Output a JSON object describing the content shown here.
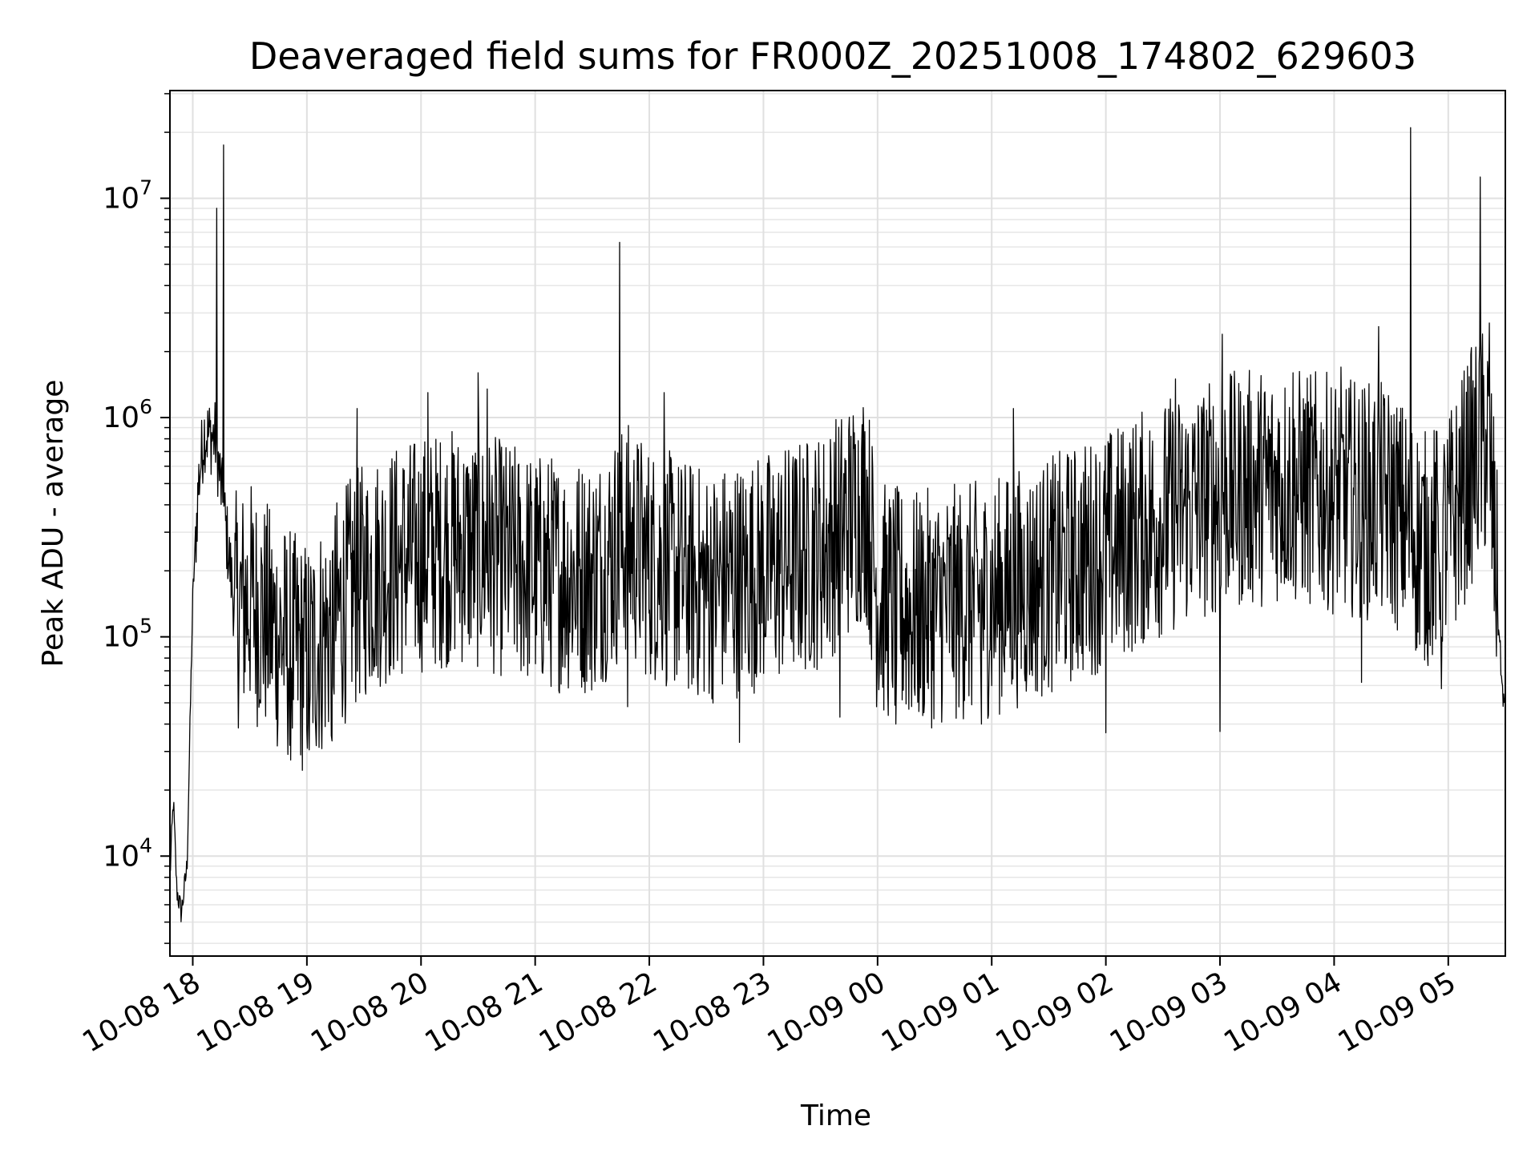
{
  "chart_data": {
    "type": "line",
    "title": "Deaveraged field sums for FR000Z_20251008_174802_629603",
    "xlabel": "Time",
    "ylabel": "Peak ADU - average",
    "yscale": "log",
    "x_unit": "hours since 10-08 00:00",
    "xlim": [
      17.8,
      29.5
    ],
    "ylim": [
      3500,
      31000000
    ],
    "x_ticks": [
      {
        "value": 18,
        "label": "10-08 18"
      },
      {
        "value": 19,
        "label": "10-08 19"
      },
      {
        "value": 20,
        "label": "10-08 20"
      },
      {
        "value": 21,
        "label": "10-08 21"
      },
      {
        "value": 22,
        "label": "10-08 22"
      },
      {
        "value": 23,
        "label": "10-08 23"
      },
      {
        "value": 24,
        "label": "10-09 00"
      },
      {
        "value": 25,
        "label": "10-09 01"
      },
      {
        "value": 26,
        "label": "10-09 02"
      },
      {
        "value": 27,
        "label": "10-09 03"
      },
      {
        "value": 28,
        "label": "10-09 04"
      },
      {
        "value": 29,
        "label": "10-09 05"
      }
    ],
    "y_ticks": [
      {
        "value": 10000,
        "base": "10",
        "exp": "4"
      },
      {
        "value": 100000,
        "base": "10",
        "exp": "5"
      },
      {
        "value": 1000000,
        "base": "10",
        "exp": "6"
      },
      {
        "value": 10000000,
        "base": "10",
        "exp": "7"
      }
    ],
    "grid": true,
    "series": [
      {
        "name": "field sums",
        "color": "#000000",
        "trend": [
          [
            17.8,
            8000
          ],
          [
            17.83,
            18000
          ],
          [
            17.86,
            7000
          ],
          [
            17.9,
            5500
          ],
          [
            17.95,
            9000
          ],
          [
            18.0,
            150000
          ],
          [
            18.05,
            500000
          ],
          [
            18.1,
            850000
          ],
          [
            18.2,
            800000
          ],
          [
            18.3,
            280000
          ],
          [
            18.37,
            130000
          ],
          [
            18.5,
            150000
          ],
          [
            18.7,
            110000
          ],
          [
            18.9,
            85000
          ],
          [
            19.0,
            80000
          ],
          [
            19.2,
            110000
          ],
          [
            19.4,
            160000
          ],
          [
            19.6,
            200000
          ],
          [
            19.8,
            220000
          ],
          [
            20.0,
            240000
          ],
          [
            20.3,
            260000
          ],
          [
            20.6,
            240000
          ],
          [
            21.0,
            200000
          ],
          [
            21.5,
            190000
          ],
          [
            21.8,
            280000
          ],
          [
            22.0,
            220000
          ],
          [
            22.5,
            170000
          ],
          [
            23.0,
            200000
          ],
          [
            23.5,
            250000
          ],
          [
            23.9,
            420000
          ],
          [
            24.0,
            150000
          ],
          [
            24.3,
            130000
          ],
          [
            24.6,
            140000
          ],
          [
            25.0,
            150000
          ],
          [
            25.5,
            190000
          ],
          [
            26.0,
            250000
          ],
          [
            26.5,
            350000
          ],
          [
            27.0,
            450000
          ],
          [
            27.5,
            500000
          ],
          [
            28.0,
            450000
          ],
          [
            28.5,
            400000
          ],
          [
            28.8,
            250000
          ],
          [
            29.0,
            300000
          ],
          [
            29.2,
            600000
          ],
          [
            29.35,
            800000
          ],
          [
            29.42,
            200000
          ],
          [
            29.47,
            60000
          ],
          [
            29.5,
            45000
          ]
        ],
        "spikes": [
          [
            18.21,
            9000000
          ],
          [
            18.27,
            17500000
          ],
          [
            21.74,
            6300000
          ],
          [
            27.02,
            2400000
          ],
          [
            28.39,
            2600000
          ],
          [
            28.67,
            21000000
          ],
          [
            29.28,
            12500000
          ],
          [
            29.36,
            2700000
          ],
          [
            19.44,
            1100000
          ],
          [
            20.06,
            1300000
          ],
          [
            20.5,
            1600000
          ],
          [
            20.58,
            1350000
          ],
          [
            22.13,
            1300000
          ],
          [
            25.19,
            1100000
          ],
          [
            26.61,
            1500000
          ],
          [
            27.64,
            1600000
          ],
          [
            28.06,
            1700000
          ]
        ],
        "dips": [
          [
            18.85,
            32000
          ],
          [
            19.02,
            30500
          ],
          [
            19.22,
            33500
          ],
          [
            21.81,
            48000
          ],
          [
            22.79,
            33000
          ],
          [
            23.67,
            43000
          ],
          [
            24.16,
            40000
          ],
          [
            24.91,
            40000
          ],
          [
            26.0,
            36500
          ],
          [
            27.0,
            37000
          ],
          [
            28.24,
            62000
          ],
          [
            28.94,
            58000
          ]
        ]
      }
    ]
  }
}
